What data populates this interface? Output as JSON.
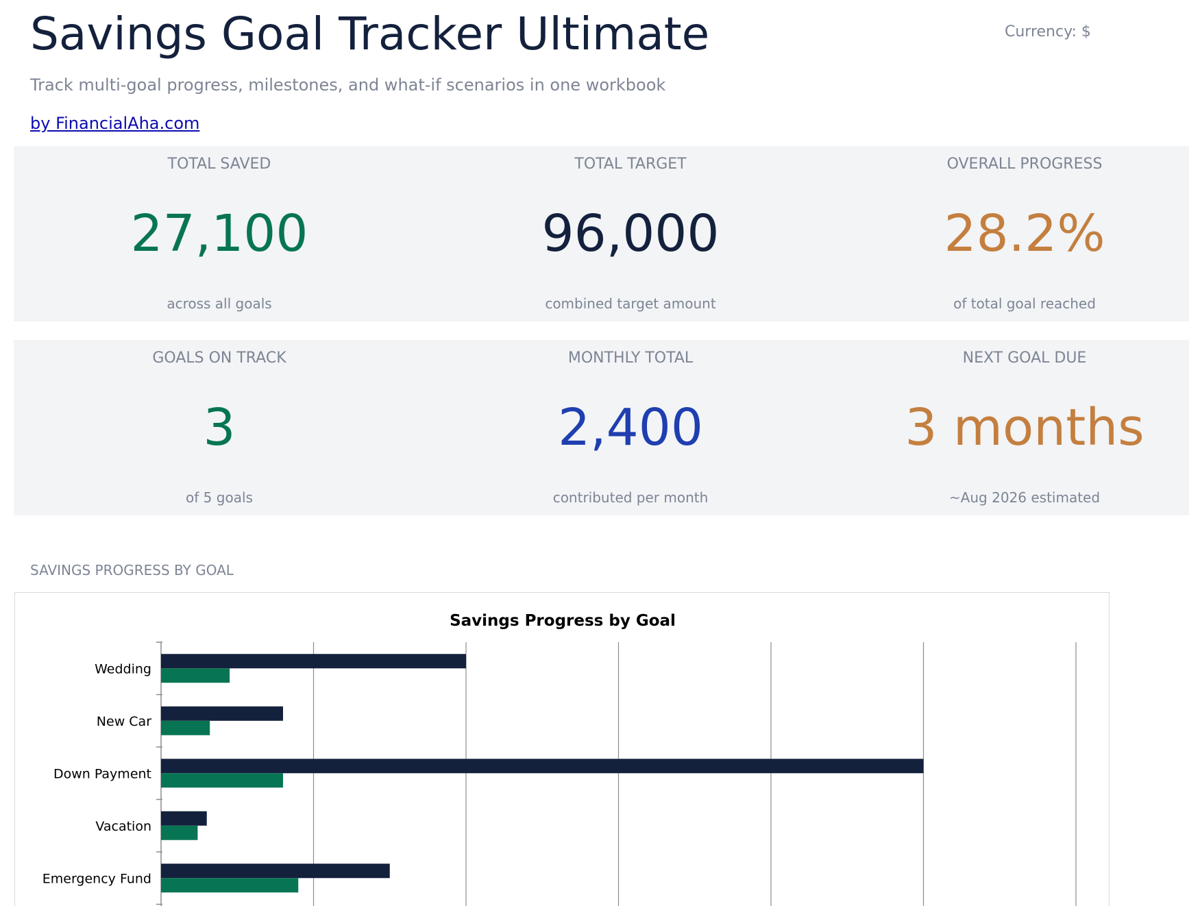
{
  "header": {
    "title": "Savings Goal Tracker Ultimate",
    "currency": "Currency: $",
    "subtitle": "Track multi-goal progress, milestones, and what-if scenarios in one workbook",
    "byline": "by FinancialAha.com"
  },
  "kpis_row1": [
    {
      "label": "TOTAL SAVED",
      "value": "27,100",
      "note": "across all goals",
      "color": "#077553"
    },
    {
      "label": "TOTAL TARGET",
      "value": "96,000",
      "note": "combined target amount",
      "color": "#14213d"
    },
    {
      "label": "OVERALL PROGRESS",
      "value": "28.2%",
      "note": "of total goal reached",
      "color": "#c47f3f"
    }
  ],
  "kpis_row2": [
    {
      "label": "GOALS ON TRACK",
      "value": "3",
      "note": "of 5 goals",
      "color": "#077553"
    },
    {
      "label": "MONTHLY TOTAL",
      "value": "2,400",
      "note": "contributed per month",
      "color": "#1f3fb0"
    },
    {
      "label": "NEXT GOAL DUE",
      "value": "3 months",
      "note": "~Aug 2026 estimated",
      "color": "#c47f3f"
    }
  ],
  "section": {
    "label": "SAVINGS PROGRESS BY GOAL"
  },
  "chart_data": {
    "type": "bar",
    "orientation": "horizontal",
    "title": "Savings Progress by Goal",
    "categories": [
      "Wedding",
      "New Car",
      "Down Payment",
      "Vacation",
      "Emergency Fund"
    ],
    "series": [
      {
        "values": [
          20000,
          8000,
          50000,
          3000,
          15000
        ],
        "color": "#14213d"
      },
      {
        "values": [
          4500,
          3200,
          8000,
          2400,
          9000
        ],
        "color": "#077553"
      }
    ],
    "xlim": [
      0,
      60000
    ],
    "grid": true
  }
}
